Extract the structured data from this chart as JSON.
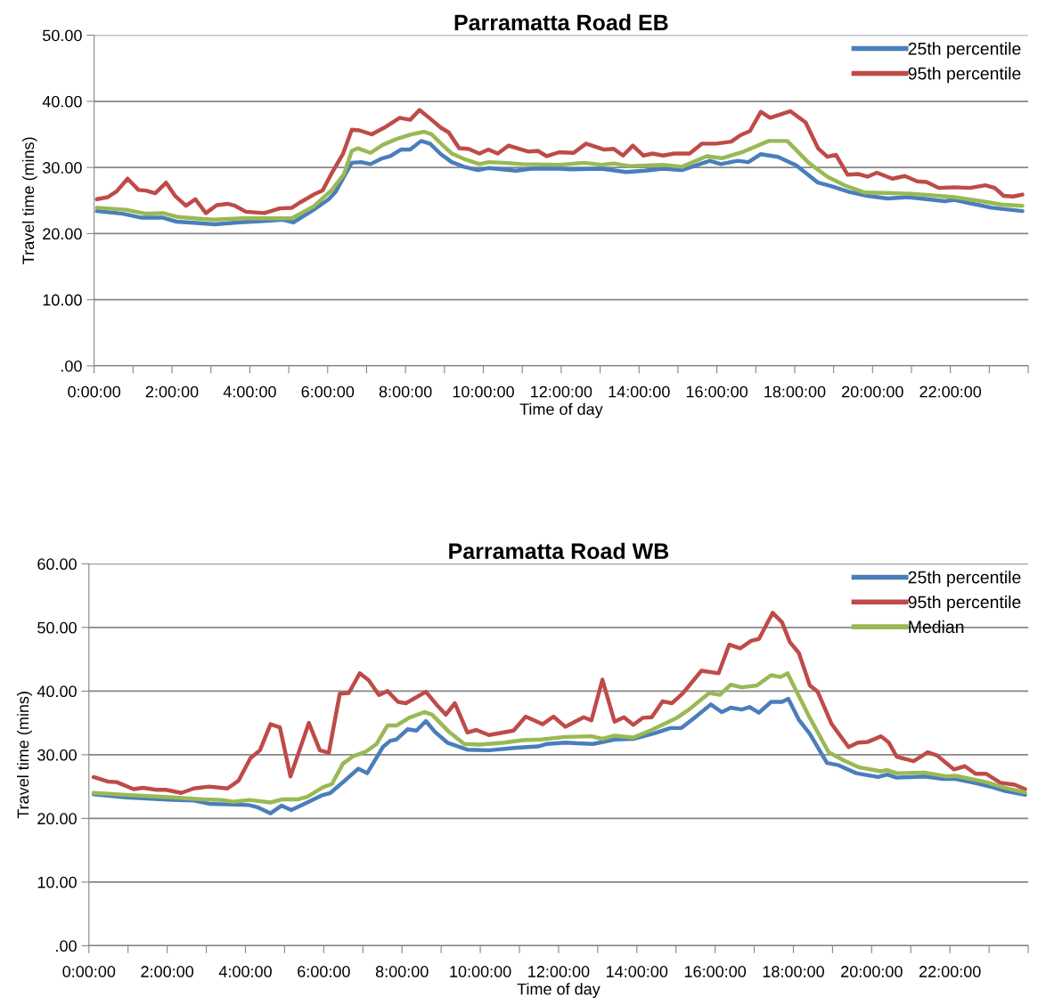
{
  "chart_data": [
    {
      "type": "line",
      "title": "Parramatta Road EB",
      "xlabel": "Time of day",
      "ylabel": "Travel time (mins)",
      "xlim": [
        0,
        24
      ],
      "xticks": [
        {
          "value": 0,
          "label": "0:00:00"
        },
        {
          "value": 1,
          "label": null
        },
        {
          "value": 2,
          "label": "2:00:00"
        },
        {
          "value": 3,
          "label": null
        },
        {
          "value": 4,
          "label": "4:00:00"
        },
        {
          "value": 5,
          "label": null
        },
        {
          "value": 6,
          "label": "6:00:00"
        },
        {
          "value": 7,
          "label": null
        },
        {
          "value": 8,
          "label": "8:00:00"
        },
        {
          "value": 9,
          "label": null
        },
        {
          "value": 10,
          "label": "10:00:00"
        },
        {
          "value": 11,
          "label": null
        },
        {
          "value": 12,
          "label": "12:00:00"
        },
        {
          "value": 13,
          "label": null
        },
        {
          "value": 14,
          "label": "14:00:00"
        },
        {
          "value": 15,
          "label": null
        },
        {
          "value": 16,
          "label": "16:00:00"
        },
        {
          "value": 17,
          "label": null
        },
        {
          "value": 18,
          "label": "18:00:00"
        },
        {
          "value": 19,
          "label": null
        },
        {
          "value": 20,
          "label": "20:00:00"
        },
        {
          "value": 21,
          "label": null
        },
        {
          "value": 22,
          "label": "22:00:00"
        },
        {
          "value": 23,
          "label": null
        },
        {
          "value": 24,
          "label": null
        }
      ],
      "ylim": [
        0,
        50
      ],
      "yticks": [
        {
          "value": 0,
          "label": ".00"
        },
        {
          "value": 10,
          "label": "10.00"
        },
        {
          "value": 20,
          "label": "20.00"
        },
        {
          "value": 30,
          "label": "30.00"
        },
        {
          "value": 40,
          "label": "40.00"
        },
        {
          "value": 50,
          "label": "50.00"
        }
      ],
      "grid": "y",
      "legend": "top right",
      "marker": "none",
      "line_style": "solid",
      "series": [
        {
          "name": "25th percentile",
          "color": "#4a7ebb",
          "x": [
            0.07,
            0.74,
            1.22,
            1.77,
            2.12,
            2.64,
            3.11,
            3.74,
            4.37,
            4.85,
            5.12,
            5.64,
            6.03,
            6.19,
            6.62,
            6.86,
            7.1,
            7.37,
            7.61,
            7.88,
            8.12,
            8.4,
            8.63,
            8.91,
            9.19,
            9.5,
            9.86,
            10.13,
            10.84,
            11.24,
            11.95,
            12.24,
            13.03,
            13.67,
            14.15,
            14.62,
            15.1,
            15.82,
            16.1,
            16.53,
            16.81,
            17.13,
            17.57,
            18.04,
            18.6,
            18.92,
            19.4,
            19.87,
            20.39,
            20.91,
            21.39,
            21.86,
            22.1,
            22.5,
            23.06,
            23.85
          ],
          "values": [
            23.4,
            23.0,
            22.4,
            22.4,
            21.8,
            21.6,
            21.4,
            21.7,
            21.9,
            22.1,
            21.7,
            23.6,
            25.2,
            26.2,
            30.7,
            30.8,
            30.5,
            31.3,
            31.7,
            32.7,
            32.7,
            34.0,
            33.6,
            32.0,
            30.8,
            30.1,
            29.6,
            29.9,
            29.5,
            29.8,
            29.8,
            29.7,
            29.8,
            29.3,
            29.5,
            29.8,
            29.6,
            31.0,
            30.5,
            31.0,
            30.8,
            32.0,
            31.6,
            30.3,
            27.7,
            27.2,
            26.3,
            25.7,
            25.3,
            25.5,
            25.2,
            24.9,
            25.1,
            24.6,
            23.9,
            23.4
          ]
        },
        {
          "name": "95th percentile",
          "color": "#be4b48",
          "x": [
            0.07,
            0.35,
            0.58,
            0.86,
            1.14,
            1.33,
            1.57,
            1.85,
            2.08,
            2.36,
            2.6,
            2.87,
            3.15,
            3.43,
            3.62,
            3.9,
            4.37,
            4.77,
            5.08,
            5.32,
            5.64,
            5.87,
            6.11,
            6.39,
            6.62,
            6.82,
            7.13,
            7.45,
            7.85,
            8.12,
            8.36,
            8.63,
            8.91,
            9.11,
            9.38,
            9.62,
            9.9,
            10.13,
            10.37,
            10.65,
            10.88,
            11.16,
            11.4,
            11.63,
            11.95,
            12.32,
            12.64,
            13.11,
            13.35,
            13.59,
            13.84,
            14.11,
            14.35,
            14.62,
            14.9,
            15.3,
            15.62,
            15.98,
            16.37,
            16.61,
            16.85,
            17.13,
            17.37,
            17.89,
            18.28,
            18.6,
            18.84,
            19.06,
            19.36,
            19.64,
            19.87,
            20.11,
            20.51,
            20.83,
            21.15,
            21.39,
            21.7,
            22.1,
            22.5,
            22.9,
            23.14,
            23.37,
            23.61,
            23.85
          ],
          "values": [
            25.2,
            25.5,
            26.4,
            28.3,
            26.6,
            26.5,
            26.1,
            27.7,
            25.7,
            24.2,
            25.2,
            23.1,
            24.3,
            24.5,
            24.2,
            23.3,
            23.1,
            23.8,
            23.9,
            24.8,
            25.9,
            26.5,
            29.2,
            32.0,
            35.7,
            35.6,
            35.0,
            36.0,
            37.5,
            37.2,
            38.7,
            37.4,
            36.0,
            35.3,
            32.9,
            32.8,
            32.1,
            32.7,
            32.1,
            33.3,
            32.9,
            32.4,
            32.5,
            31.7,
            32.3,
            32.2,
            33.6,
            32.7,
            32.8,
            31.8,
            33.3,
            31.8,
            32.1,
            31.8,
            32.1,
            32.1,
            33.6,
            33.6,
            33.9,
            34.9,
            35.5,
            38.4,
            37.5,
            38.5,
            36.8,
            32.9,
            31.6,
            31.9,
            28.9,
            29.0,
            28.6,
            29.2,
            28.3,
            28.7,
            27.9,
            27.8,
            26.9,
            27.0,
            26.9,
            27.3,
            26.9,
            25.7,
            25.6,
            25.9
          ]
        },
        {
          "color": "#98b954",
          "x": [
            0.07,
            0.82,
            1.33,
            1.77,
            2.16,
            2.79,
            3.11,
            3.43,
            3.82,
            4.37,
            5.08,
            5.64,
            6.11,
            6.42,
            6.62,
            6.78,
            7.1,
            7.41,
            7.77,
            8.16,
            8.48,
            8.67,
            8.95,
            9.19,
            9.54,
            9.9,
            10.13,
            10.53,
            11.0,
            11.95,
            12.6,
            13.03,
            13.35,
            13.75,
            14.15,
            14.62,
            15.1,
            15.74,
            16.14,
            16.69,
            17.33,
            17.81,
            18.36,
            18.84,
            19.32,
            19.8,
            20.51,
            20.99,
            21.47,
            22.1,
            22.9,
            23.3,
            23.85
          ],
          "values": [
            23.9,
            23.6,
            23.0,
            23.1,
            22.5,
            22.2,
            22.1,
            22.2,
            22.3,
            22.3,
            22.3,
            24.1,
            26.6,
            29.0,
            32.5,
            32.9,
            32.2,
            33.4,
            34.3,
            35.0,
            35.4,
            35.0,
            33.4,
            32.1,
            31.2,
            30.5,
            30.8,
            30.7,
            30.5,
            30.4,
            30.7,
            30.4,
            30.6,
            30.2,
            30.3,
            30.4,
            30.1,
            31.7,
            31.4,
            32.4,
            34.0,
            34.0,
            30.7,
            28.6,
            27.2,
            26.2,
            26.1,
            26.0,
            25.8,
            25.5,
            24.8,
            24.4,
            24.2
          ]
        }
      ]
    },
    {
      "type": "line",
      "title": "Parramatta Road WB",
      "xlabel": "Time of day",
      "ylabel": "Travel time (mins)",
      "xlim": [
        0,
        24
      ],
      "xticks": [
        {
          "value": 0,
          "label": "0:00:00"
        },
        {
          "value": 1,
          "label": null
        },
        {
          "value": 2,
          "label": "2:00:00"
        },
        {
          "value": 3,
          "label": null
        },
        {
          "value": 4,
          "label": "4:00:00"
        },
        {
          "value": 5,
          "label": null
        },
        {
          "value": 6,
          "label": "6:00:00"
        },
        {
          "value": 7,
          "label": null
        },
        {
          "value": 8,
          "label": "8:00:00"
        },
        {
          "value": 9,
          "label": null
        },
        {
          "value": 10,
          "label": "10:00:00"
        },
        {
          "value": 11,
          "label": null
        },
        {
          "value": 12,
          "label": "12:00:00"
        },
        {
          "value": 13,
          "label": null
        },
        {
          "value": 14,
          "label": "14:00:00"
        },
        {
          "value": 15,
          "label": null
        },
        {
          "value": 16,
          "label": "16:00:00"
        },
        {
          "value": 17,
          "label": null
        },
        {
          "value": 18,
          "label": "18:00:00"
        },
        {
          "value": 19,
          "label": null
        },
        {
          "value": 20,
          "label": "20:00:00"
        },
        {
          "value": 21,
          "label": null
        },
        {
          "value": 22,
          "label": "22:00:00"
        },
        {
          "value": 23,
          "label": null
        },
        {
          "value": 24,
          "label": null
        }
      ],
      "ylim": [
        0,
        60
      ],
      "yticks": [
        {
          "value": 0,
          "label": ".00"
        },
        {
          "value": 10,
          "label": "10.00"
        },
        {
          "value": 20,
          "label": "20.00"
        },
        {
          "value": 30,
          "label": "30.00"
        },
        {
          "value": 40,
          "label": "40.00"
        },
        {
          "value": 50,
          "label": "50.00"
        },
        {
          "value": 60,
          "label": "60.00"
        }
      ],
      "grid": "y",
      "legend": "top right",
      "marker": "none",
      "line_style": "solid",
      "series": [
        {
          "name": "25th percentile",
          "color": "#4a7ebb",
          "x": [
            0.12,
            0.95,
            2.13,
            2.68,
            3.07,
            3.54,
            4.09,
            4.33,
            4.64,
            4.92,
            5.17,
            5.58,
            5.94,
            6.17,
            6.53,
            6.88,
            7.11,
            7.51,
            7.7,
            7.86,
            8.14,
            8.37,
            8.61,
            8.84,
            9.16,
            9.67,
            10.22,
            10.93,
            11.47,
            11.71,
            12.17,
            12.48,
            12.88,
            13.43,
            13.91,
            14.46,
            14.86,
            15.14,
            15.49,
            15.89,
            16.17,
            16.4,
            16.68,
            16.88,
            17.12,
            17.43,
            17.71,
            17.87,
            18.14,
            18.42,
            18.86,
            19.13,
            19.61,
            20.16,
            20.4,
            20.64,
            21.35,
            21.83,
            22.14,
            22.62,
            23.09,
            23.41,
            23.92
          ],
          "values": [
            23.8,
            23.3,
            22.9,
            22.8,
            22.3,
            22.2,
            22.1,
            21.7,
            20.8,
            22.0,
            21.3,
            22.5,
            23.6,
            24.0,
            25.9,
            27.8,
            27.1,
            31.2,
            32.2,
            32.4,
            34.0,
            33.8,
            35.3,
            33.6,
            31.9,
            30.8,
            30.7,
            31.1,
            31.3,
            31.7,
            31.9,
            31.8,
            31.7,
            32.4,
            32.5,
            33.4,
            34.2,
            34.2,
            35.9,
            37.9,
            36.7,
            37.4,
            37.1,
            37.5,
            36.6,
            38.3,
            38.3,
            38.8,
            35.5,
            33.3,
            28.7,
            28.4,
            27.1,
            26.5,
            26.9,
            26.4,
            26.6,
            26.2,
            26.2,
            25.6,
            24.9,
            24.3,
            23.7
          ]
        },
        {
          "name": "95th percentile",
          "color": "#be4b48",
          "x": [
            0.12,
            0.48,
            0.71,
            1.14,
            1.38,
            1.73,
            1.97,
            2.36,
            2.68,
            3.07,
            3.54,
            3.82,
            4.13,
            4.37,
            4.64,
            4.88,
            5.15,
            5.62,
            5.9,
            6.13,
            6.41,
            6.64,
            6.92,
            7.15,
            7.41,
            7.63,
            7.9,
            8.1,
            8.61,
            8.88,
            9.12,
            9.35,
            9.67,
            9.9,
            10.22,
            10.85,
            11.16,
            11.59,
            11.87,
            12.17,
            12.64,
            12.84,
            13.12,
            13.43,
            13.67,
            13.91,
            14.15,
            14.38,
            14.66,
            14.9,
            15.18,
            15.65,
            16.09,
            16.36,
            16.64,
            16.92,
            17.12,
            17.47,
            17.71,
            17.91,
            18.14,
            18.42,
            18.62,
            18.98,
            19.41,
            19.65,
            19.89,
            20.24,
            20.44,
            20.64,
            21.07,
            21.43,
            21.67,
            22.1,
            22.38,
            22.66,
            22.93,
            23.29,
            23.65,
            23.92
          ],
          "values": [
            26.5,
            25.8,
            25.7,
            24.6,
            24.8,
            24.5,
            24.5,
            24.0,
            24.7,
            25.0,
            24.7,
            25.9,
            29.5,
            30.7,
            34.8,
            34.3,
            26.6,
            35.0,
            30.7,
            30.3,
            39.6,
            39.7,
            42.8,
            41.7,
            39.4,
            40.0,
            38.3,
            38.1,
            39.9,
            37.9,
            36.3,
            38.1,
            33.5,
            33.9,
            33.1,
            33.8,
            36.0,
            34.8,
            36.0,
            34.4,
            35.9,
            35.4,
            41.8,
            35.2,
            35.9,
            34.7,
            35.8,
            35.9,
            38.4,
            38.1,
            39.7,
            43.2,
            42.8,
            47.3,
            46.7,
            47.9,
            48.2,
            52.3,
            50.8,
            47.7,
            46.0,
            40.9,
            39.9,
            34.8,
            31.2,
            31.9,
            32.0,
            32.9,
            31.9,
            29.7,
            29.0,
            30.4,
            29.9,
            27.7,
            28.2,
            27.0,
            27.0,
            25.6,
            25.3,
            24.6
          ]
        },
        {
          "name": "Median",
          "color": "#98b954",
          "x": [
            0.12,
            0.95,
            2.13,
            2.91,
            3.38,
            3.7,
            4.09,
            4.64,
            4.95,
            5.35,
            5.58,
            5.98,
            6.21,
            6.49,
            6.76,
            7.08,
            7.35,
            7.63,
            7.86,
            8.18,
            8.57,
            8.77,
            9.2,
            9.59,
            9.98,
            10.61,
            11.08,
            11.55,
            12.17,
            12.84,
            13.12,
            13.43,
            13.91,
            14.38,
            15.02,
            15.33,
            15.85,
            16.12,
            16.4,
            16.68,
            17.07,
            17.43,
            17.67,
            17.85,
            18.1,
            18.42,
            18.9,
            19.29,
            19.69,
            20.24,
            20.4,
            20.64,
            21.35,
            21.9,
            22.14,
            22.93,
            23.41,
            23.92
          ],
          "values": [
            24.0,
            23.7,
            23.3,
            23.0,
            22.9,
            22.6,
            22.9,
            22.5,
            23.0,
            23.0,
            23.4,
            24.9,
            25.4,
            28.6,
            29.8,
            30.5,
            31.7,
            34.6,
            34.6,
            35.8,
            36.7,
            36.3,
            33.6,
            31.7,
            31.6,
            31.9,
            32.3,
            32.4,
            32.8,
            32.9,
            32.5,
            33.0,
            32.7,
            33.9,
            35.8,
            37.1,
            39.7,
            39.4,
            41.0,
            40.6,
            40.9,
            42.5,
            42.2,
            42.8,
            39.7,
            35.8,
            30.4,
            29.1,
            28.0,
            27.4,
            27.6,
            27.1,
            27.2,
            26.6,
            26.7,
            25.7,
            24.8,
            24.1
          ]
        }
      ]
    }
  ]
}
